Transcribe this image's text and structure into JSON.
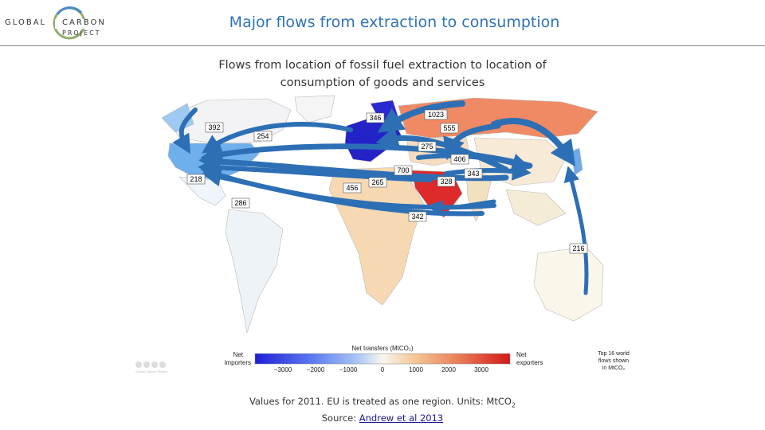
{
  "header": {
    "logo_line1_left": "GLOBAL",
    "logo_line1_right": "CARBON",
    "logo_line2": "PROJECT",
    "title": "Major flows from extraction to consumption"
  },
  "subtitle": {
    "line1": "Flows from location of fossil fuel extraction to location of",
    "line2": "consumption of goods and services"
  },
  "map": {
    "flow_labels": [
      "392",
      "254",
      "218",
      "346",
      "1023",
      "555",
      "275",
      "406",
      "343",
      "700",
      "328",
      "265",
      "456",
      "286",
      "342",
      "216"
    ],
    "colorbar": {
      "title": "Net transfers (MtCO₂)",
      "left_label_1": "Net",
      "left_label_2": "importers",
      "right_label_1": "Net",
      "right_label_2": "exporters",
      "ticks": [
        "−3000",
        "−2000",
        "−1000",
        "0",
        "1000",
        "2000",
        "3000"
      ],
      "colors": [
        "#1f1fd6",
        "#5a78f0",
        "#a9c6f5",
        "#f7f7ee",
        "#f5c99a",
        "#ea7d55",
        "#d11a1a"
      ]
    },
    "legend_note": {
      "line1": "Top 16 world",
      "line2": "flows shown",
      "line3": "in MtCO₂"
    },
    "credit": "Global Carbon Project"
  },
  "caption": {
    "line1_text": "Values for 2011. EU is treated as one region. Units: MtCO",
    "line1_sub": "2",
    "source_prefix": "Source: ",
    "source_link": "Andrew et al 2013"
  },
  "colors": {
    "title": "#2e73b8",
    "arrow": "#2d6fb5",
    "eu": "#2323c8",
    "middle_east": "#dd2a2a",
    "russia": "#f08a64",
    "usa": "#6fb0ec"
  }
}
